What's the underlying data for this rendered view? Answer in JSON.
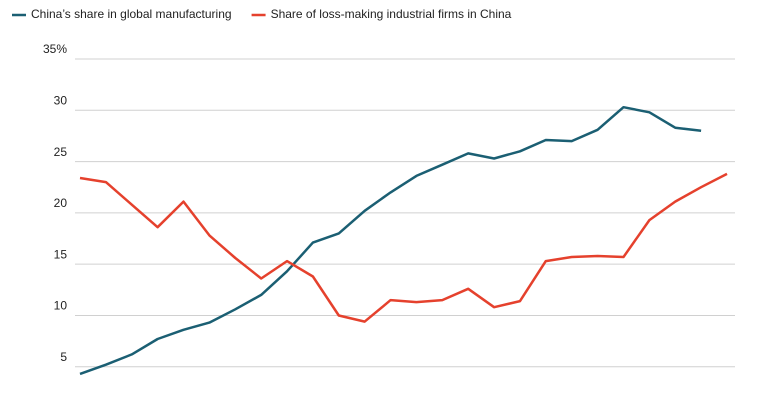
{
  "chart_data": {
    "type": "line",
    "categories": [
      null,
      null,
      null,
      null,
      null,
      null,
      null,
      null,
      null,
      null,
      null,
      null,
      null,
      null,
      null,
      null,
      null,
      null,
      null,
      null,
      null,
      null,
      null,
      null,
      null,
      null
    ],
    "series": [
      {
        "name": "China’s share in global manufacturing",
        "color": "#1b5f73",
        "values": [
          4.3,
          5.2,
          6.2,
          7.7,
          8.6,
          9.3,
          10.6,
          12.0,
          14.3,
          17.1,
          18.0,
          20.2,
          22.0,
          23.6,
          24.7,
          25.8,
          25.3,
          26.0,
          27.1,
          27.0,
          28.1,
          30.3,
          29.8,
          28.3,
          28.0,
          null
        ]
      },
      {
        "name": "Share of loss-making industrial firms in China",
        "color": "#e5412d",
        "values": [
          23.4,
          23.0,
          20.8,
          18.6,
          21.1,
          17.8,
          15.6,
          13.6,
          15.3,
          13.8,
          10.0,
          9.4,
          11.5,
          11.3,
          11.5,
          12.6,
          10.8,
          11.4,
          15.3,
          15.7,
          15.8,
          15.7,
          19.3,
          21.1,
          22.5,
          23.8
        ]
      }
    ],
    "ylim": [
      4,
      35
    ],
    "yticks": [
      5,
      10,
      15,
      20,
      25,
      30,
      {
        "value": 35,
        "label": "35%"
      }
    ],
    "grid": true
  }
}
